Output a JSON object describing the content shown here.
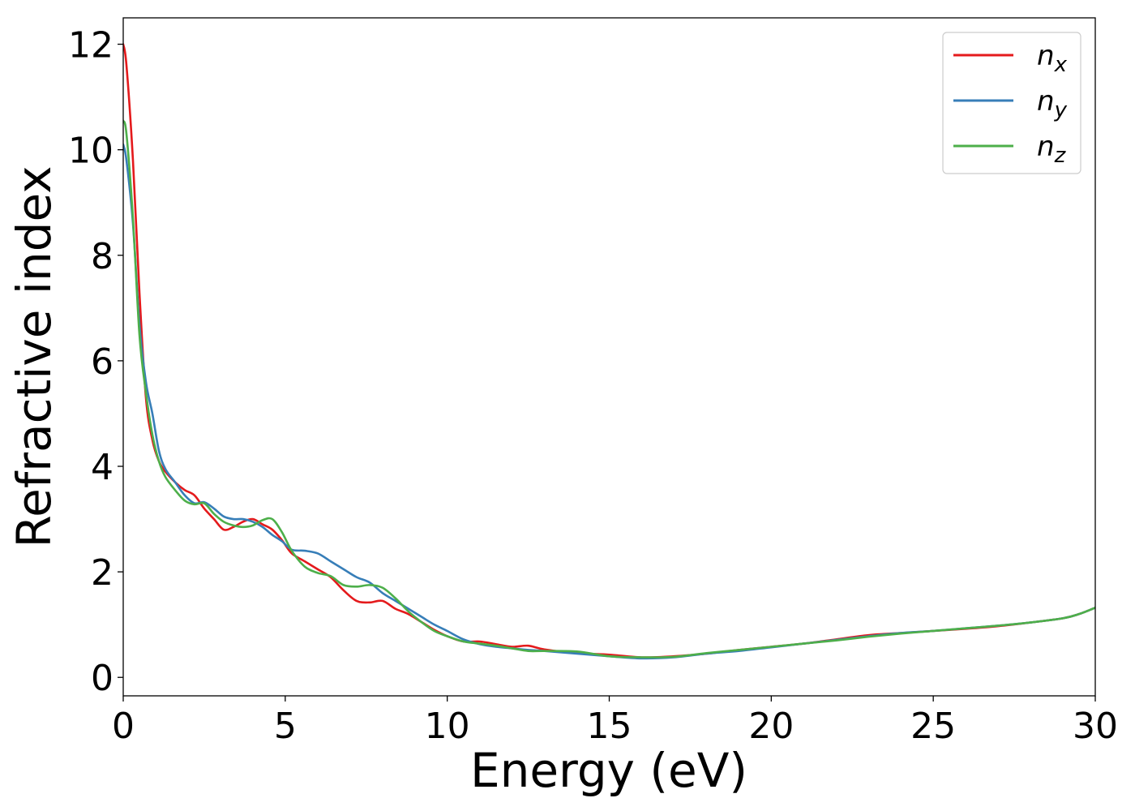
{
  "chart_data": {
    "type": "line",
    "xlabel": "Energy (eV)",
    "ylabel": "Refractive index",
    "xlim": [
      0,
      30
    ],
    "ylim": [
      -0.35,
      12.5
    ],
    "xticks": [
      0,
      5,
      10,
      15,
      20,
      25,
      30
    ],
    "yticks": [
      0,
      2,
      4,
      6,
      8,
      10,
      12
    ],
    "grid": false,
    "legend_position": "top-right",
    "series": [
      {
        "name": "n",
        "subscript": "x",
        "color": "#e41a1c",
        "x": [
          0,
          0.1,
          0.3,
          0.5,
          0.7,
          0.9,
          1.1,
          1.3,
          1.6,
          1.9,
          2.2,
          2.5,
          2.8,
          3.1,
          3.4,
          3.7,
          4.0,
          4.3,
          4.6,
          4.9,
          5.2,
          5.6,
          6.0,
          6.4,
          6.8,
          7.2,
          7.6,
          8.0,
          8.4,
          8.8,
          9.2,
          9.6,
          10.0,
          10.5,
          11.0,
          11.5,
          12.0,
          12.5,
          13.0,
          14.0,
          15.0,
          16.0,
          17.0,
          18.0,
          19.0,
          20.0,
          21.0,
          22.0,
          23.0,
          24.0,
          25.0,
          26.0,
          27.0,
          28.0,
          29.0,
          29.5,
          30.0
        ],
        "values": [
          12.0,
          11.6,
          9.8,
          7.3,
          5.3,
          4.5,
          4.1,
          3.9,
          3.7,
          3.55,
          3.45,
          3.2,
          3.0,
          2.8,
          2.85,
          2.95,
          3.0,
          2.9,
          2.8,
          2.6,
          2.35,
          2.2,
          2.05,
          1.9,
          1.65,
          1.45,
          1.42,
          1.45,
          1.3,
          1.2,
          1.05,
          0.9,
          0.78,
          0.68,
          0.68,
          0.63,
          0.58,
          0.6,
          0.53,
          0.46,
          0.43,
          0.38,
          0.4,
          0.45,
          0.52,
          0.58,
          0.64,
          0.72,
          0.8,
          0.84,
          0.88,
          0.92,
          0.97,
          1.04,
          1.12,
          1.2,
          1.32
        ]
      },
      {
        "name": "n",
        "subscript": "y",
        "color": "#377eb8",
        "x": [
          0,
          0.1,
          0.3,
          0.5,
          0.7,
          0.9,
          1.1,
          1.3,
          1.6,
          1.9,
          2.2,
          2.5,
          2.8,
          3.1,
          3.4,
          3.7,
          4.0,
          4.3,
          4.6,
          4.9,
          5.2,
          5.6,
          6.0,
          6.4,
          6.8,
          7.2,
          7.6,
          8.0,
          8.4,
          8.8,
          9.2,
          9.6,
          10.0,
          10.5,
          11.0,
          11.5,
          12.0,
          12.5,
          13.0,
          14.0,
          15.0,
          16.0,
          17.0,
          18.0,
          19.0,
          20.0,
          21.0,
          22.0,
          23.0,
          24.0,
          25.0,
          26.0,
          27.0,
          28.0,
          29.0,
          29.5,
          30.0
        ],
        "values": [
          10.1,
          9.8,
          8.6,
          6.7,
          5.6,
          5.0,
          4.3,
          3.95,
          3.7,
          3.45,
          3.3,
          3.32,
          3.2,
          3.05,
          3.0,
          3.0,
          2.95,
          2.85,
          2.7,
          2.58,
          2.42,
          2.4,
          2.35,
          2.2,
          2.05,
          1.9,
          1.8,
          1.6,
          1.45,
          1.3,
          1.15,
          1.0,
          0.88,
          0.72,
          0.63,
          0.58,
          0.55,
          0.52,
          0.5,
          0.45,
          0.4,
          0.36,
          0.38,
          0.45,
          0.5,
          0.57,
          0.64,
          0.71,
          0.78,
          0.84,
          0.88,
          0.93,
          0.98,
          1.04,
          1.12,
          1.2,
          1.32
        ]
      },
      {
        "name": "n",
        "subscript": "z",
        "color": "#4daf4a",
        "x": [
          0,
          0.1,
          0.3,
          0.5,
          0.7,
          0.9,
          1.1,
          1.3,
          1.6,
          1.9,
          2.2,
          2.5,
          2.8,
          3.1,
          3.4,
          3.7,
          4.0,
          4.3,
          4.6,
          4.9,
          5.2,
          5.6,
          6.0,
          6.4,
          6.8,
          7.2,
          7.6,
          8.0,
          8.4,
          8.8,
          9.2,
          9.6,
          10.0,
          10.5,
          11.0,
          11.5,
          12.0,
          12.5,
          13.0,
          14.0,
          15.0,
          16.0,
          17.0,
          18.0,
          19.0,
          20.0,
          21.0,
          22.0,
          23.0,
          24.0,
          25.0,
          26.0,
          27.0,
          28.0,
          29.0,
          29.5,
          30.0
        ],
        "values": [
          10.55,
          10.3,
          8.7,
          6.5,
          5.4,
          4.6,
          4.1,
          3.8,
          3.55,
          3.35,
          3.28,
          3.3,
          3.1,
          2.95,
          2.88,
          2.85,
          2.88,
          2.98,
          3.0,
          2.75,
          2.4,
          2.1,
          1.98,
          1.92,
          1.75,
          1.72,
          1.75,
          1.7,
          1.5,
          1.25,
          1.05,
          0.88,
          0.78,
          0.68,
          0.64,
          0.6,
          0.55,
          0.5,
          0.5,
          0.49,
          0.4,
          0.38,
          0.39,
          0.46,
          0.52,
          0.58,
          0.64,
          0.7,
          0.77,
          0.83,
          0.88,
          0.93,
          0.98,
          1.04,
          1.12,
          1.2,
          1.32
        ]
      }
    ]
  }
}
